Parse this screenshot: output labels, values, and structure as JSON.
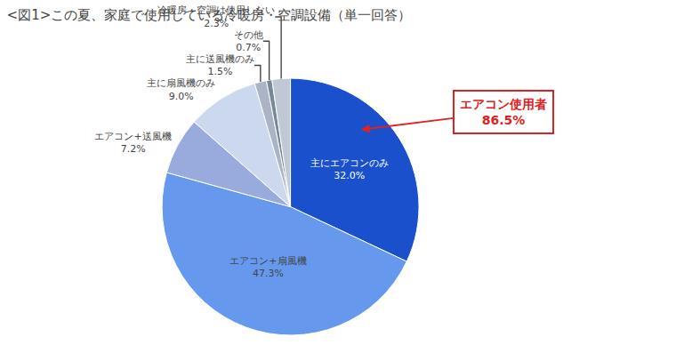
{
  "chart_data": {
    "type": "pie",
    "title": "<図1>この夏、家庭で使用している冷暖房・空調設備（単一回答）",
    "categories": [
      "主にエアコンのみ",
      "エアコン+扇風機",
      "エアコン+送風機",
      "主に扇風機のみ",
      "主に送風機のみ",
      "その他",
      "冷暖房・空調は使用しない"
    ],
    "values": [
      32.0,
      47.3,
      7.2,
      9.0,
      1.5,
      0.7,
      2.3
    ],
    "value_labels": [
      "32.0%",
      "47.3%",
      "7.2%",
      "9.0%",
      "1.5%",
      "0.7%",
      "2.3%"
    ],
    "colors": [
      "#1a50cc",
      "#6699ee",
      "#99aadd",
      "#ccd8ee",
      "#aab4c4",
      "#778899",
      "#c0c8d4"
    ],
    "data_labels": true,
    "legend": false,
    "annotations": [
      {
        "text": "エアコン使用者",
        "value": 86.5,
        "value_label": "86.5%",
        "color": "#dd2222"
      }
    ]
  }
}
